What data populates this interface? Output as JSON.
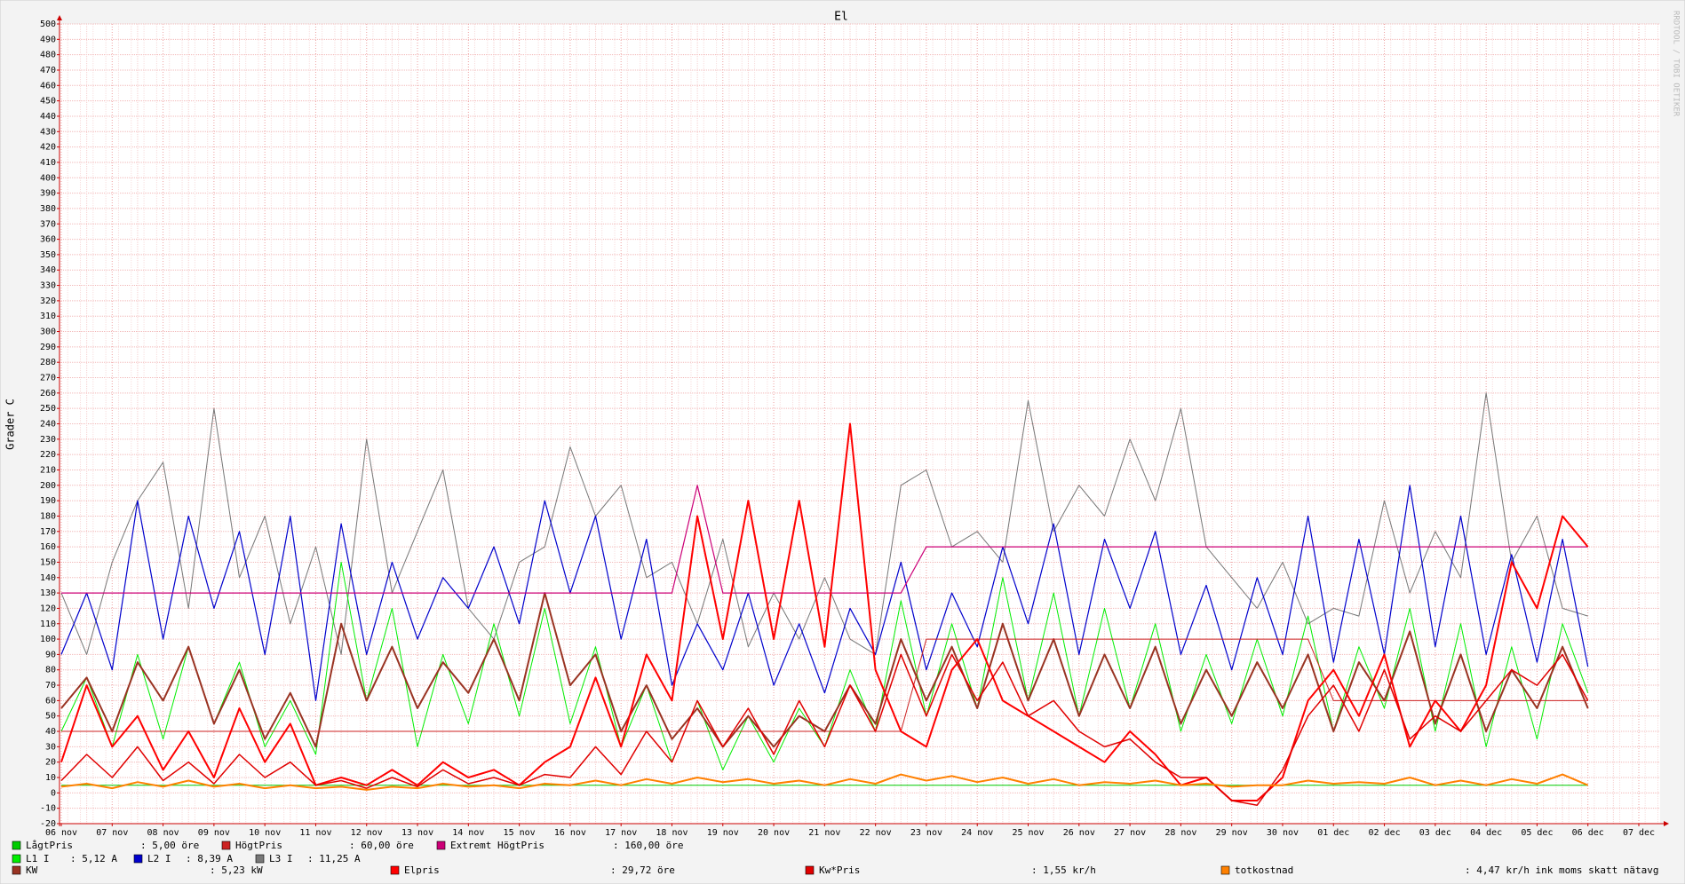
{
  "chart_data": {
    "type": "line",
    "title": "El",
    "y_label": "Grader C",
    "watermark": "RRDTOOL / TOBI OETIKER",
    "categories": [
      "06 nov",
      null,
      "07 nov",
      null,
      "08 nov",
      null,
      "09 nov",
      null,
      "10 nov",
      null,
      "11 nov",
      null,
      "12 nov",
      null,
      "13 nov",
      null,
      "14 nov",
      null,
      "15 nov",
      null,
      "16 nov",
      null,
      "17 nov",
      null,
      "18 nov",
      null,
      "19 nov",
      null,
      "20 nov",
      null,
      "21 nov",
      null,
      "22 nov",
      null,
      "23 nov",
      null,
      "24 nov",
      null,
      "25 nov",
      null,
      "26 nov",
      null,
      "27 nov",
      null,
      "28 nov",
      null,
      "29 nov",
      null,
      "30 nov",
      null,
      "01 dec",
      null,
      "02 dec",
      null,
      "03 dec",
      null,
      "04 dec",
      null,
      "05 dec",
      null,
      "06 dec",
      null,
      "07 dec"
    ],
    "ylim": [
      -20,
      500
    ],
    "yticks": [
      -20,
      -10,
      0,
      10,
      20,
      30,
      40,
      50,
      60,
      70,
      80,
      90,
      100,
      110,
      120,
      130,
      140,
      150,
      160,
      170,
      180,
      190,
      200,
      210,
      220,
      230,
      240,
      250,
      260,
      270,
      280,
      290,
      300,
      310,
      320,
      330,
      340,
      350,
      360,
      370,
      380,
      390,
      400,
      410,
      420,
      430,
      440,
      450,
      460,
      470,
      480,
      490,
      500
    ],
    "grid": true,
    "series": [
      {
        "name": "LågtPris",
        "legend_value": ": 5,00 öre",
        "color": "#00cc00",
        "values": [
          5,
          5,
          5,
          5,
          5,
          5,
          5,
          5,
          5,
          5,
          5,
          5,
          5,
          5,
          5,
          5,
          5,
          5,
          5,
          5,
          5,
          5,
          5,
          5,
          5,
          5,
          5,
          5,
          5,
          5,
          5,
          5,
          5,
          5,
          5,
          5,
          5,
          5,
          5,
          5,
          5,
          5,
          5,
          5,
          5,
          5,
          5,
          5,
          5,
          5,
          5,
          5,
          5,
          5,
          5,
          5,
          5,
          5,
          5,
          5,
          5,
          null,
          null
        ]
      },
      {
        "name": "HögtPris",
        "legend_value": ": 60,00 öre",
        "color": "#cc2222",
        "values": [
          40,
          40,
          40,
          40,
          40,
          40,
          40,
          40,
          40,
          40,
          40,
          40,
          40,
          40,
          40,
          40,
          40,
          40,
          40,
          40,
          40,
          40,
          40,
          40,
          40,
          40,
          40,
          40,
          40,
          40,
          40,
          40,
          40,
          40,
          100,
          100,
          100,
          100,
          100,
          100,
          100,
          100,
          100,
          100,
          100,
          100,
          100,
          100,
          100,
          100,
          60,
          60,
          60,
          60,
          60,
          60,
          60,
          60,
          60,
          60,
          60,
          null,
          null
        ]
      },
      {
        "name": "Extremt HögtPris",
        "legend_value": ": 160,00 öre",
        "color": "#cc0077",
        "values": [
          130,
          130,
          130,
          130,
          130,
          130,
          130,
          130,
          130,
          130,
          130,
          130,
          130,
          130,
          130,
          130,
          130,
          130,
          130,
          130,
          130,
          130,
          130,
          130,
          130,
          200,
          130,
          130,
          130,
          130,
          130,
          130,
          130,
          130,
          160,
          160,
          160,
          160,
          160,
          160,
          160,
          160,
          160,
          160,
          160,
          160,
          160,
          160,
          160,
          160,
          160,
          160,
          160,
          160,
          160,
          160,
          160,
          160,
          160,
          160,
          160,
          null,
          null
        ]
      },
      {
        "name": "L1 I",
        "legend_value": ": 5,12 A",
        "color": "#00ee00",
        "values": [
          40,
          75,
          30,
          90,
          35,
          95,
          45,
          85,
          30,
          60,
          25,
          150,
          60,
          120,
          30,
          90,
          45,
          110,
          50,
          120,
          45,
          95,
          30,
          70,
          20,
          60,
          15,
          50,
          20,
          55,
          30,
          80,
          40,
          125,
          50,
          110,
          55,
          140,
          60,
          130,
          50,
          120,
          55,
          110,
          40,
          90,
          45,
          100,
          50,
          115,
          40,
          95,
          55,
          120,
          40,
          110,
          30,
          95,
          35,
          110,
          65,
          null,
          null
        ]
      },
      {
        "name": "L2 I",
        "legend_value": ": 8,39 A",
        "color": "#0000cc",
        "values": [
          90,
          130,
          80,
          190,
          100,
          180,
          120,
          170,
          90,
          180,
          60,
          175,
          90,
          150,
          100,
          140,
          120,
          160,
          110,
          190,
          130,
          180,
          100,
          165,
          70,
          110,
          80,
          130,
          70,
          110,
          65,
          120,
          90,
          150,
          80,
          130,
          95,
          160,
          110,
          175,
          90,
          165,
          120,
          170,
          90,
          135,
          80,
          140,
          90,
          180,
          85,
          165,
          90,
          200,
          95,
          180,
          90,
          155,
          85,
          165,
          82,
          null,
          null
        ]
      },
      {
        "name": "L3 I",
        "legend_value": ": 11,25 A",
        "color": "#777777",
        "values": [
          130,
          90,
          150,
          190,
          215,
          120,
          250,
          140,
          180,
          110,
          160,
          90,
          230,
          130,
          170,
          210,
          120,
          100,
          150,
          160,
          225,
          180,
          200,
          140,
          150,
          110,
          165,
          95,
          130,
          100,
          140,
          100,
          90,
          200,
          210,
          160,
          170,
          150,
          255,
          170,
          200,
          180,
          230,
          190,
          250,
          160,
          140,
          120,
          150,
          110,
          120,
          115,
          190,
          130,
          170,
          140,
          260,
          150,
          180,
          120,
          115,
          null,
          null
        ]
      },
      {
        "name": "KW",
        "legend_value": ": 5,23 kW",
        "color": "#993322",
        "values": [
          55,
          75,
          40,
          85,
          60,
          95,
          45,
          80,
          35,
          65,
          30,
          110,
          60,
          95,
          55,
          85,
          65,
          100,
          60,
          130,
          70,
          90,
          40,
          70,
          35,
          55,
          30,
          50,
          30,
          50,
          40,
          70,
          45,
          100,
          60,
          95,
          55,
          110,
          60,
          100,
          50,
          90,
          55,
          95,
          45,
          80,
          50,
          85,
          55,
          90,
          40,
          85,
          60,
          105,
          45,
          90,
          40,
          80,
          55,
          95,
          55,
          null,
          null
        ]
      },
      {
        "name": "Elpris",
        "legend_value": ": 29,72 öre",
        "color": "#ff0000",
        "values": [
          20,
          70,
          30,
          50,
          15,
          40,
          10,
          55,
          20,
          45,
          5,
          10,
          5,
          15,
          5,
          20,
          10,
          15,
          5,
          20,
          30,
          75,
          30,
          90,
          60,
          180,
          100,
          190,
          100,
          190,
          95,
          240,
          80,
          40,
          30,
          80,
          100,
          60,
          50,
          40,
          30,
          20,
          40,
          25,
          5,
          10,
          -5,
          -5,
          10,
          60,
          80,
          50,
          90,
          30,
          60,
          40,
          70,
          150,
          120,
          180,
          160,
          null,
          null
        ]
      },
      {
        "name": "Kw*Pris",
        "legend_value": ": 1,55 kr/h",
        "color": "#e00000",
        "values": [
          8,
          25,
          10,
          30,
          8,
          20,
          6,
          25,
          10,
          20,
          5,
          8,
          3,
          10,
          4,
          15,
          6,
          10,
          5,
          12,
          10,
          30,
          12,
          40,
          20,
          60,
          30,
          55,
          25,
          60,
          30,
          70,
          40,
          90,
          50,
          90,
          60,
          85,
          50,
          60,
          40,
          30,
          35,
          20,
          10,
          10,
          -5,
          -8,
          15,
          50,
          70,
          40,
          80,
          35,
          50,
          40,
          60,
          80,
          70,
          90,
          60,
          null,
          null
        ]
      },
      {
        "name": "totkostnad",
        "legend_value": ": 4,47 kr/h ink moms skatt nätavg",
        "color": "#ff8000",
        "values": [
          4,
          6,
          3,
          7,
          4,
          8,
          4,
          6,
          3,
          5,
          3,
          4,
          2,
          4,
          3,
          6,
          4,
          5,
          3,
          6,
          5,
          8,
          5,
          9,
          6,
          10,
          7,
          9,
          6,
          8,
          5,
          9,
          6,
          12,
          8,
          11,
          7,
          10,
          6,
          9,
          5,
          7,
          6,
          8,
          5,
          6,
          4,
          5,
          5,
          8,
          6,
          7,
          6,
          10,
          5,
          8,
          5,
          9,
          6,
          12,
          5,
          null,
          null
        ]
      }
    ]
  }
}
